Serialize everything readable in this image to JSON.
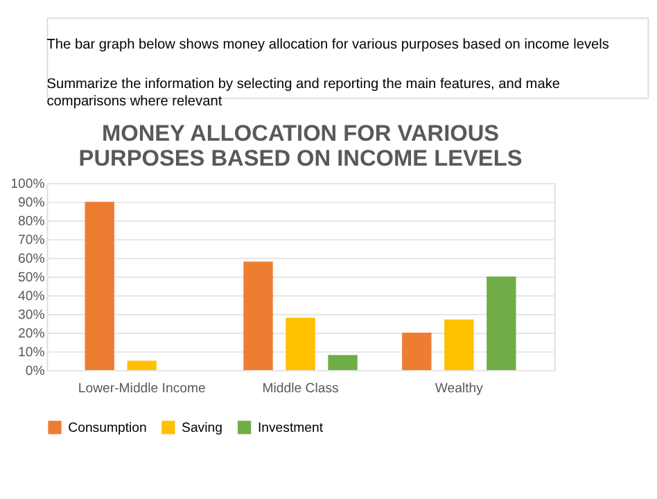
{
  "chart_data": {
    "type": "bar",
    "title": "MONEY ALLOCATION FOR VARIOUS PURPOSES BASED ON INCOME LEVELS",
    "annotations": [
      "The bar graph below shows money allocation for various purposes based on income levels",
      "Summarize the information by selecting and reporting the main features, and make comparisons where relevant"
    ],
    "categories": [
      "Lower-Middle Income",
      "Middle Class",
      "Wealthy"
    ],
    "series": [
      {
        "name": "Consumption",
        "color": "#ed7d31",
        "values": [
          90,
          58,
          20
        ]
      },
      {
        "name": "Saving",
        "color": "#ffc000",
        "values": [
          5,
          28,
          27
        ]
      },
      {
        "name": "Investment",
        "color": "#70ad47",
        "values": [
          0,
          8,
          50
        ]
      }
    ],
    "ylim": [
      0,
      100
    ],
    "yticks": [
      {
        "value": 0,
        "label": "0%"
      },
      {
        "value": 10,
        "label": "10%"
      },
      {
        "value": 20,
        "label": "20%"
      },
      {
        "value": 30,
        "label": "30%"
      },
      {
        "value": 40,
        "label": "40%"
      },
      {
        "value": 50,
        "label": "50%"
      },
      {
        "value": 60,
        "label": "60%"
      },
      {
        "value": 70,
        "label": "70%"
      },
      {
        "value": 80,
        "label": "80%"
      },
      {
        "value": 90,
        "label": "90%"
      },
      {
        "value": 100,
        "label": "100%"
      }
    ],
    "grid": "y",
    "legend": "bottom"
  }
}
